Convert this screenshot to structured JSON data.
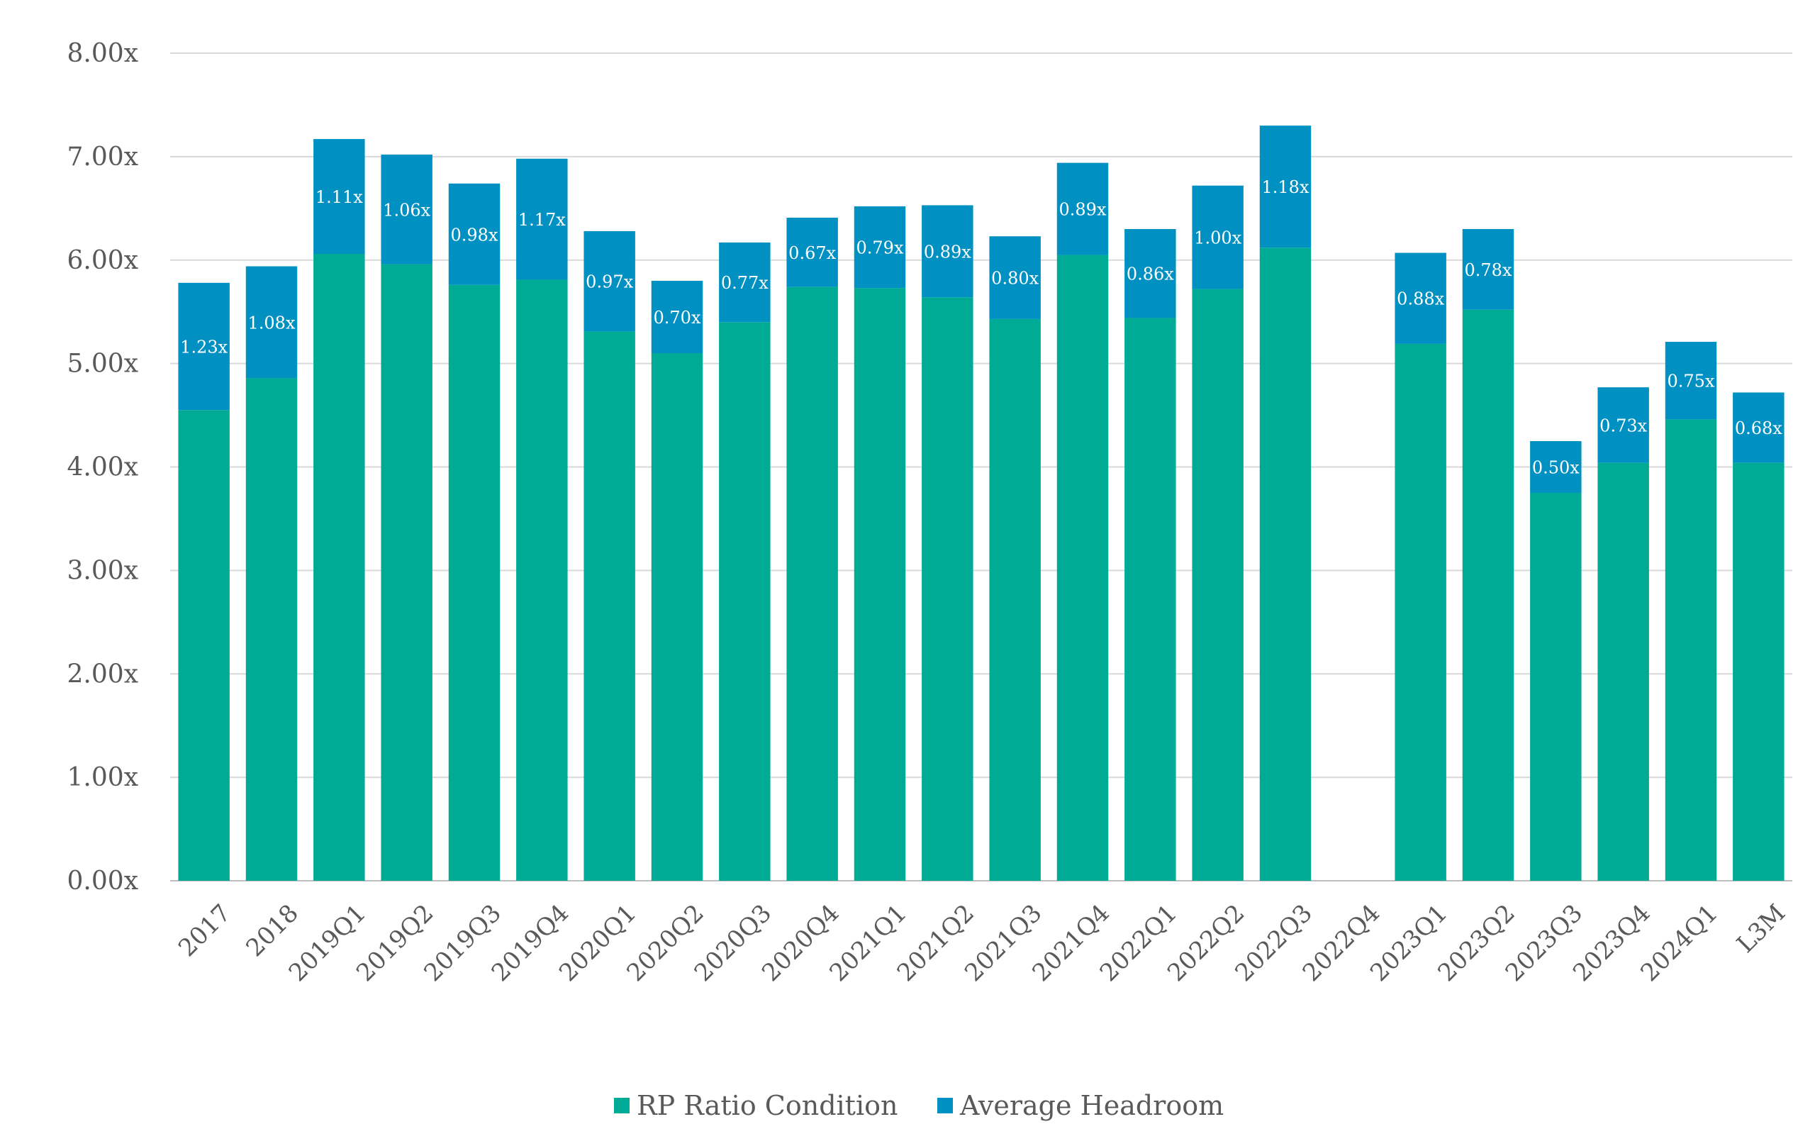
{
  "chart_data": {
    "type": "bar",
    "stacked": true,
    "categories": [
      "2017",
      "2018",
      "2019Q1",
      "2019Q2",
      "2019Q3",
      "2019Q4",
      "2020Q1",
      "2020Q2",
      "2020Q3",
      "2020Q4",
      "2021Q1",
      "2021Q2",
      "2021Q3",
      "2021Q4",
      "2022Q1",
      "2022Q2",
      "2022Q3",
      "2022Q4",
      "2023Q1",
      "2023Q2",
      "2023Q3",
      "2023Q4",
      "2024Q1",
      "L3M"
    ],
    "series": [
      {
        "name": "RP Ratio Condition",
        "color": "#00ab96",
        "values": [
          4.55,
          4.86,
          6.06,
          5.96,
          5.76,
          5.81,
          5.31,
          5.1,
          5.4,
          5.74,
          5.73,
          5.64,
          5.43,
          6.05,
          5.44,
          5.72,
          6.12,
          null,
          5.19,
          5.52,
          3.75,
          4.04,
          4.46,
          4.04
        ]
      },
      {
        "name": "Average Headroom",
        "color": "#0090c1",
        "values": [
          1.23,
          1.08,
          1.11,
          1.06,
          0.98,
          1.17,
          0.97,
          0.7,
          0.77,
          0.67,
          0.79,
          0.89,
          0.8,
          0.89,
          0.86,
          1.0,
          1.18,
          null,
          0.88,
          0.78,
          0.5,
          0.73,
          0.75,
          0.68
        ],
        "labels": [
          "1.23x",
          "1.08x",
          "1.11x",
          "1.06x",
          "0.98x",
          "1.17x",
          "0.97x",
          "0.70x",
          "0.77x",
          "0.67x",
          "0.79x",
          "0.89x",
          "0.80x",
          "0.89x",
          "0.86x",
          "1.00x",
          "1.18x",
          "",
          "0.88x",
          "0.78x",
          "0.50x",
          "0.73x",
          "0.75x",
          "0.68x"
        ]
      }
    ],
    "ylim": [
      0,
      8
    ],
    "yticks": [
      "0.00x",
      "1.00x",
      "2.00x",
      "3.00x",
      "4.00x",
      "5.00x",
      "6.00x",
      "7.00x",
      "8.00x"
    ],
    "grid": true,
    "legend": "bottom-center",
    "gridline_color": "#d9d9d9"
  }
}
